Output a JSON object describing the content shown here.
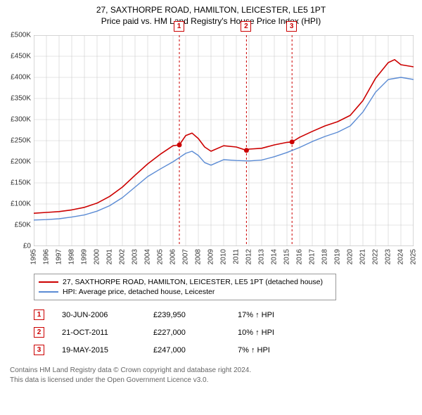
{
  "title": {
    "line1": "27, SAXTHORPE ROAD, HAMILTON, LEICESTER, LE5 1PT",
    "line2": "Price paid vs. HM Land Registry's House Price Index (HPI)",
    "fontsize": 12,
    "color": "#000000"
  },
  "chart": {
    "type": "line",
    "background_color": "#ffffff",
    "plot_border_color": "#888888",
    "grid_color": "#cccccc",
    "xlim": [
      1995,
      2025
    ],
    "ylim": [
      0,
      500000
    ],
    "y_tick_step": 50000,
    "y_tick_prefix": "£",
    "y_tick_labels": [
      "£0",
      "£50K",
      "£100K",
      "£150K",
      "£200K",
      "£250K",
      "£300K",
      "£350K",
      "£400K",
      "£450K",
      "£500K"
    ],
    "x_ticks": [
      1995,
      1996,
      1997,
      1998,
      1999,
      2000,
      2001,
      2002,
      2003,
      2004,
      2005,
      2006,
      2007,
      2008,
      2009,
      2010,
      2011,
      2012,
      2013,
      2014,
      2015,
      2016,
      2017,
      2018,
      2019,
      2020,
      2021,
      2022,
      2023,
      2024,
      2025
    ],
    "label_fontsize": 10,
    "series": [
      {
        "name": "price_paid",
        "label": "27, SAXTHORPE ROAD, HAMILTON, LEICESTER, LE5 1PT (detached house)",
        "color": "#cc0000",
        "line_width": 1.6,
        "x": [
          1995,
          1996,
          1997,
          1998,
          1999,
          2000,
          2001,
          2002,
          2003,
          2004,
          2005,
          2006,
          2006.5,
          2007,
          2007.5,
          2008,
          2008.5,
          2009,
          2010,
          2011,
          2011.8,
          2012,
          2013,
          2014,
          2015,
          2015.4,
          2016,
          2017,
          2018,
          2019,
          2020,
          2021,
          2022,
          2023,
          2023.5,
          2024,
          2025
        ],
        "y": [
          78000,
          80000,
          82000,
          86000,
          92000,
          102000,
          118000,
          140000,
          168000,
          195000,
          218000,
          238000,
          239950,
          262000,
          268000,
          255000,
          235000,
          225000,
          238000,
          235000,
          227000,
          230000,
          232000,
          240000,
          246000,
          247000,
          258000,
          272000,
          285000,
          295000,
          310000,
          345000,
          398000,
          435000,
          442000,
          430000,
          425000
        ]
      },
      {
        "name": "hpi",
        "label": "HPI: Average price, detached house, Leicester",
        "color": "#5b8bd4",
        "line_width": 1.4,
        "x": [
          1995,
          1996,
          1997,
          1998,
          1999,
          2000,
          2001,
          2002,
          2003,
          2004,
          2005,
          2006,
          2007,
          2007.5,
          2008,
          2008.5,
          2009,
          2010,
          2011,
          2012,
          2013,
          2014,
          2015,
          2016,
          2017,
          2018,
          2019,
          2020,
          2021,
          2022,
          2023,
          2024,
          2025
        ],
        "y": [
          62000,
          63000,
          65000,
          69000,
          74000,
          83000,
          96000,
          115000,
          140000,
          165000,
          183000,
          200000,
          220000,
          225000,
          215000,
          198000,
          192000,
          205000,
          203000,
          202000,
          204000,
          212000,
          222000,
          234000,
          248000,
          260000,
          270000,
          285000,
          318000,
          365000,
          395000,
          400000,
          395000
        ]
      }
    ],
    "event_markers": [
      {
        "n": "1",
        "x": 2006.5,
        "date": "30-JUN-2006",
        "price": "£239,950",
        "price_val": 239950,
        "hpi_delta": "17% ↑ HPI"
      },
      {
        "n": "2",
        "x": 2011.8,
        "date": "21-OCT-2011",
        "price": "£227,000",
        "price_val": 227000,
        "hpi_delta": "10% ↑ HPI"
      },
      {
        "n": "3",
        "x": 2015.4,
        "date": "19-MAY-2015",
        "price": "£247,000",
        "price_val": 247000,
        "hpi_delta": "7% ↑ HPI"
      }
    ],
    "event_line_color": "#cc0000",
    "event_line_dash": "3,3",
    "event_dot_color": "#cc0000",
    "event_dot_radius": 3.5
  },
  "footnote": {
    "line1": "Contains HM Land Registry data © Crown copyright and database right 2024.",
    "line2": "This data is licensed under the Open Government Licence v3.0."
  }
}
